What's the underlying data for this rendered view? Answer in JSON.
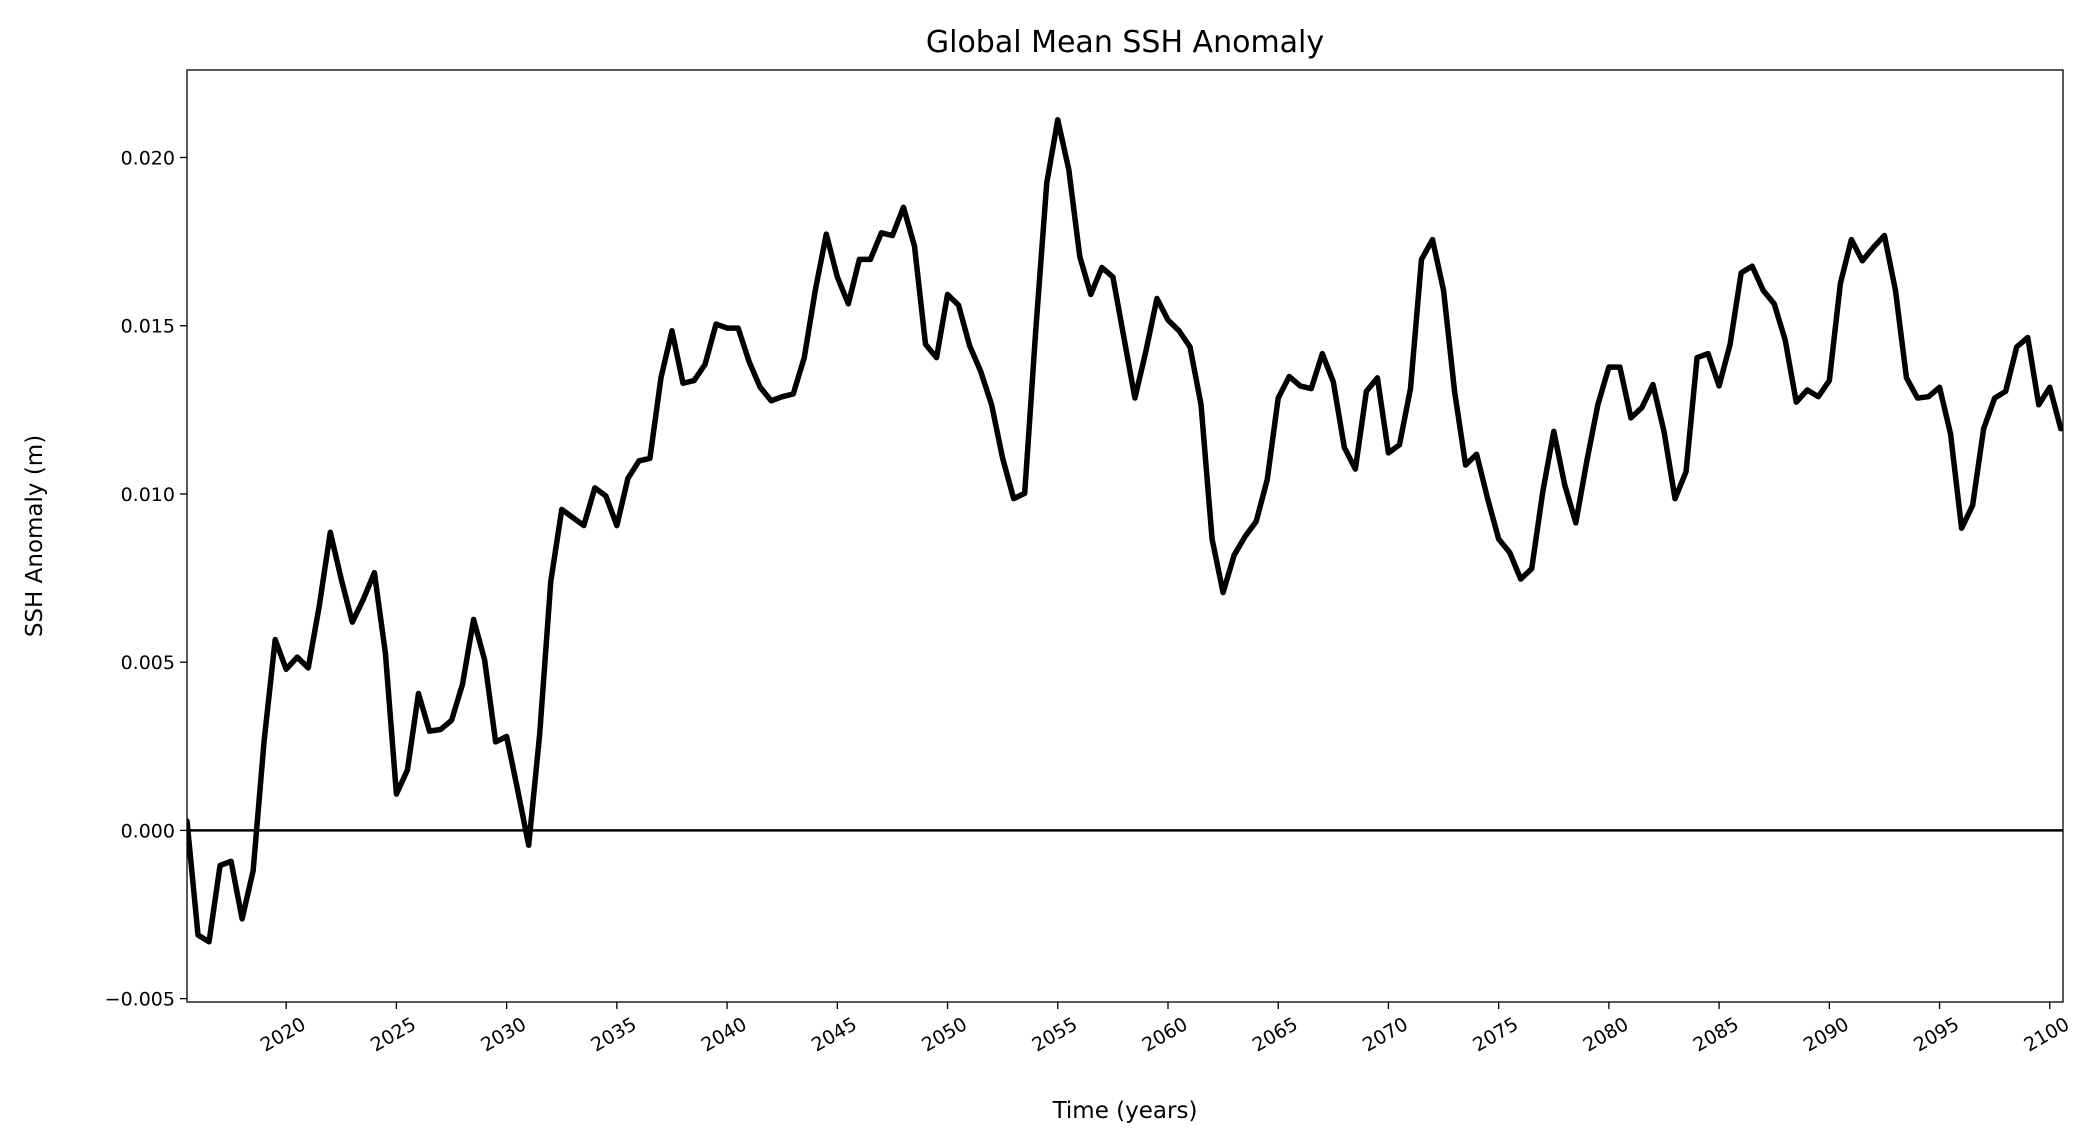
{
  "chart_data": {
    "type": "line",
    "title": "Global Mean SSH Anomaly",
    "xlabel": "Time (years)",
    "ylabel": "SSH Anomaly (m)",
    "xlim": [
      2015.5,
      2100.6
    ],
    "ylim": [
      -0.0051,
      0.0226
    ],
    "xticks": [
      2020,
      2025,
      2030,
      2035,
      2040,
      2045,
      2050,
      2055,
      2060,
      2065,
      2070,
      2075,
      2080,
      2085,
      2090,
      2095,
      2100
    ],
    "yticks": [
      {
        "value": -0.005,
        "label": "−0.005"
      },
      {
        "value": 0,
        "label": "0.000"
      },
      {
        "value": 0.005,
        "label": "0.005"
      },
      {
        "value": 0.01,
        "label": "0.010"
      },
      {
        "value": 0.015,
        "label": "0.015"
      },
      {
        "value": 0.02,
        "label": "0.020"
      }
    ],
    "axhline": 0,
    "grid": false,
    "x": [
      2015.5,
      2016,
      2016.5,
      2017,
      2017.5,
      2018,
      2018.5,
      2019,
      2019.5,
      2020,
      2020.5,
      2021,
      2021.5,
      2022,
      2022.5,
      2023,
      2023.5,
      2024,
      2024.5,
      2025,
      2025.5,
      2026,
      2026.5,
      2027,
      2027.5,
      2028,
      2028.5,
      2029,
      2029.5,
      2030,
      2030.5,
      2031,
      2031.5,
      2032,
      2032.5,
      2033,
      2033.5,
      2034,
      2034.5,
      2035,
      2035.5,
      2036,
      2036.5,
      2037,
      2037.5,
      2038,
      2038.5,
      2039,
      2039.5,
      2040,
      2040.5,
      2041,
      2041.5,
      2042,
      2042.5,
      2043,
      2043.5,
      2044,
      2044.5,
      2045,
      2045.5,
      2046,
      2046.5,
      2047,
      2047.5,
      2048,
      2048.5,
      2049,
      2049.5,
      2050,
      2050.5,
      2051,
      2051.5,
      2052,
      2052.5,
      2053,
      2053.5,
      2054,
      2054.5,
      2055,
      2055.5,
      2056,
      2056.5,
      2057,
      2057.5,
      2058,
      2058.5,
      2059,
      2059.5,
      2060,
      2060.5,
      2061,
      2061.5,
      2062,
      2062.5,
      2063,
      2063.5,
      2064,
      2064.5,
      2065,
      2065.5,
      2066,
      2066.5,
      2067,
      2067.5,
      2068,
      2068.5,
      2069,
      2069.5,
      2070,
      2070.5,
      2071,
      2071.5,
      2072,
      2072.5,
      2073,
      2073.5,
      2074,
      2074.5,
      2075,
      2075.5,
      2076,
      2076.5,
      2077,
      2077.5,
      2078,
      2078.5,
      2079,
      2079.5,
      2080,
      2080.5,
      2081,
      2081.5,
      2082,
      2082.5,
      2083,
      2083.5,
      2084,
      2084.5,
      2085,
      2085.5,
      2086,
      2086.5,
      2087,
      2087.5,
      2088,
      2088.5,
      2089,
      2089.5,
      2090,
      2090.5,
      2091,
      2091.5,
      2092,
      2092.5,
      2093,
      2093.5,
      2094,
      2094.5,
      2095,
      2095.5,
      2096,
      2096.5,
      2097,
      2097.5,
      2098,
      2098.5,
      2099,
      2099.5,
      2100,
      2100.5
    ],
    "series": [
      {
        "name": "Global Mean SSH Anomaly",
        "color": "#000000",
        "values": [
          0.00028,
          -0.00311,
          -0.00331,
          -0.00104,
          -0.00092,
          -0.00263,
          -0.0012,
          0.00267,
          0.00567,
          0.00479,
          0.00515,
          0.00483,
          0.00667,
          0.00886,
          0.00746,
          0.00619,
          0.00687,
          0.00766,
          0.00527,
          0.00108,
          0.0018,
          0.00407,
          0.00295,
          0.003,
          0.00327,
          0.00435,
          0.00627,
          0.00507,
          0.00263,
          0.00279,
          0.0012,
          -0.00044,
          0.00287,
          0.00739,
          0.00954,
          0.0093,
          0.00906,
          0.01018,
          0.00994,
          0.00906,
          0.01046,
          0.01098,
          0.01106,
          0.01345,
          0.01485,
          0.01329,
          0.01337,
          0.01385,
          0.01505,
          0.01493,
          0.01493,
          0.01393,
          0.01317,
          0.01277,
          0.01289,
          0.01297,
          0.01405,
          0.01605,
          0.01772,
          0.01645,
          0.01565,
          0.01697,
          0.01697,
          0.01776,
          0.01768,
          0.01852,
          0.01737,
          0.01445,
          0.01405,
          0.01593,
          0.01561,
          0.01441,
          0.01365,
          0.01265,
          0.01106,
          0.00986,
          0.01002,
          0.01485,
          0.01924,
          0.02112,
          0.01964,
          0.01705,
          0.01593,
          0.01673,
          0.01645,
          0.01465,
          0.01285,
          0.01425,
          0.01581,
          0.01517,
          0.01485,
          0.01437,
          0.01265,
          0.00866,
          0.00707,
          0.00818,
          0.00874,
          0.00918,
          0.01042,
          0.01285,
          0.01349,
          0.01321,
          0.01313,
          0.01417,
          0.01333,
          0.01138,
          0.01074,
          0.01305,
          0.01345,
          0.01122,
          0.01146,
          0.01313,
          0.01697,
          0.01756,
          0.01605,
          0.01305,
          0.01086,
          0.01118,
          0.00986,
          0.00866,
          0.00826,
          0.00747,
          0.00778,
          0.01006,
          0.01186,
          0.01026,
          0.00914,
          0.01098,
          0.01265,
          0.01377,
          0.01377,
          0.01226,
          0.01257,
          0.01325,
          0.01186,
          0.00986,
          0.01066,
          0.01405,
          0.01417,
          0.01321,
          0.01445,
          0.01657,
          0.01677,
          0.01605,
          0.01565,
          0.01457,
          0.01273,
          0.01309,
          0.01289,
          0.01337,
          0.01625,
          0.01756,
          0.01693,
          0.01733,
          0.01768,
          0.01605,
          0.01345,
          0.01285,
          0.01289,
          0.01317,
          0.01178,
          0.00898,
          0.00966,
          0.01194,
          0.01285,
          0.01305,
          0.01437,
          0.01465,
          0.01265,
          0.01317,
          0.01194
        ]
      }
    ]
  }
}
